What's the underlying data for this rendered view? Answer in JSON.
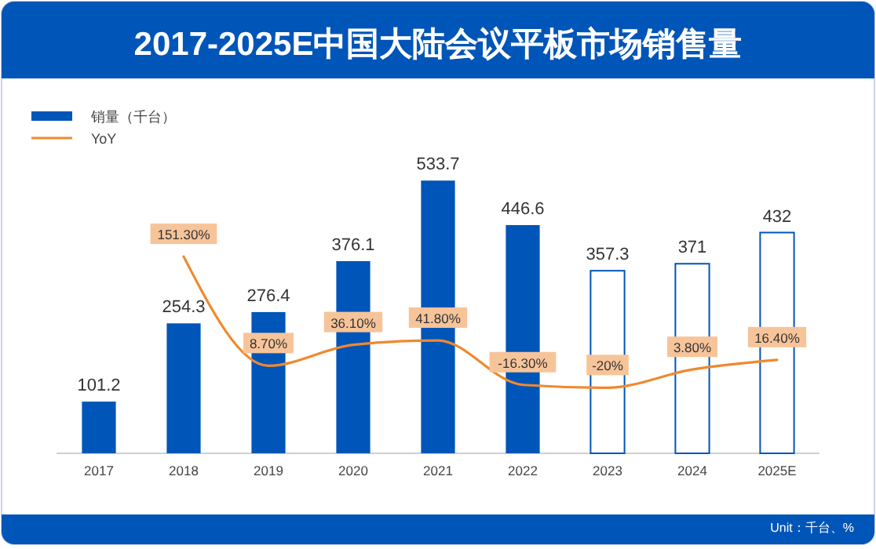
{
  "chart_data": {
    "type": "bar",
    "title": "2017-2025E中国大陆会议平板市场销售量",
    "categories": [
      "2017",
      "2018",
      "2019",
      "2020",
      "2021",
      "2022",
      "2023",
      "2024",
      "2025E"
    ],
    "series": [
      {
        "name": "销量（千台）",
        "color": "#0055b8",
        "colors": [
          "#0055b8",
          "#0055b8",
          "#0055b8",
          "#0055b8",
          "#0055b8",
          "#0055b8",
          "#ffffff",
          "#ffffff",
          "#ffffff"
        ],
        "values": [
          101.2,
          254.3,
          276.4,
          376.1,
          533.7,
          446.6,
          357.3,
          371,
          432
        ]
      },
      {
        "name": "YoY",
        "type": "line",
        "axis": "y2",
        "color": "#f0892f",
        "values": [
          null,
          151.3,
          8.7,
          36.1,
          41.8,
          -16.3,
          -20,
          3.8,
          16.4
        ],
        "value_labels": [
          null,
          "151.30%",
          "8.70%",
          "36.10%",
          "41.80%",
          "-16.30%",
          "-20%",
          "3.80%",
          "16.40%"
        ]
      }
    ],
    "tick_labels": "x",
    "data_labels": true,
    "legend": "top left",
    "grid": false,
    "annotations": [
      "Unit：千台、%"
    ]
  }
}
